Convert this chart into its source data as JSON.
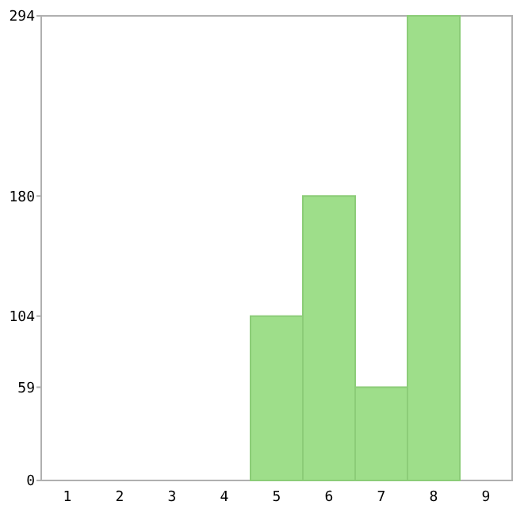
{
  "chart_data": {
    "type": "bar",
    "categories": [
      "1",
      "2",
      "3",
      "4",
      "5",
      "6",
      "7",
      "8",
      "9"
    ],
    "values": [
      0,
      0,
      0,
      0,
      104,
      180,
      59,
      294,
      0
    ],
    "color": "#9ede8a",
    "ylim": [
      0,
      294
    ],
    "yticks": [
      0,
      59,
      104,
      180,
      294
    ],
    "grid": false
  }
}
